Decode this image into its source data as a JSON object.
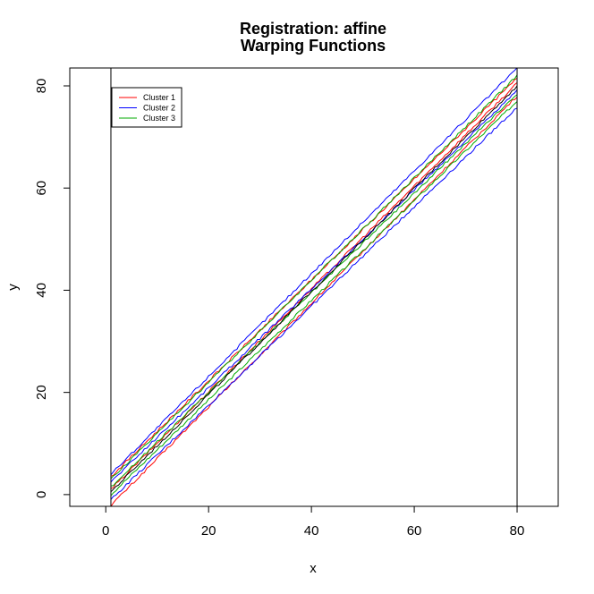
{
  "chart_data": {
    "type": "line",
    "title": "Registration: affine",
    "subtitle": "Warping Functions",
    "xlabel": "x",
    "ylabel": "y",
    "xlim": [
      -7,
      88
    ],
    "ylim": [
      -2.3,
      83.5
    ],
    "x_ticks": [
      0,
      20,
      40,
      60,
      80
    ],
    "y_ticks": [
      0,
      20,
      40,
      60,
      80
    ],
    "grid": false,
    "legend_position": "top-left",
    "legend": [
      {
        "label": "Cluster 1",
        "color": "#ff0000"
      },
      {
        "label": "Cluster 2",
        "color": "#0000ff"
      },
      {
        "label": "Cluster 3",
        "color": "#00aa00"
      }
    ],
    "reference_vlines": [
      1,
      80
    ],
    "x_range": [
      1,
      80
    ],
    "series": [
      {
        "cluster": 1,
        "color": "#ff0000",
        "y_start": -2.1,
        "y_end": 78.0
      },
      {
        "cluster": 1,
        "color": "#ff0000",
        "y_start": 1.0,
        "y_end": 80.5
      },
      {
        "cluster": 1,
        "color": "#ff0000",
        "y_start": 3.5,
        "y_end": 81.5
      },
      {
        "cluster": 2,
        "color": "#0000ff",
        "y_start": -1.0,
        "y_end": 75.8
      },
      {
        "cluster": 2,
        "color": "#0000ff",
        "y_start": 2.5,
        "y_end": 79.0
      },
      {
        "cluster": 2,
        "color": "#0000ff",
        "y_start": 4.0,
        "y_end": 83.5
      },
      {
        "cluster": 3,
        "color": "#00aa00",
        "y_start": 0.0,
        "y_end": 77.0
      },
      {
        "cluster": 3,
        "color": "#00aa00",
        "y_start": 1.5,
        "y_end": 78.5
      },
      {
        "cluster": 3,
        "color": "#00aa00",
        "y_start": 3.0,
        "y_end": 82.0
      },
      {
        "cluster": 0,
        "color": "#000000",
        "y_start": 0.5,
        "y_end": 80.0
      }
    ]
  }
}
